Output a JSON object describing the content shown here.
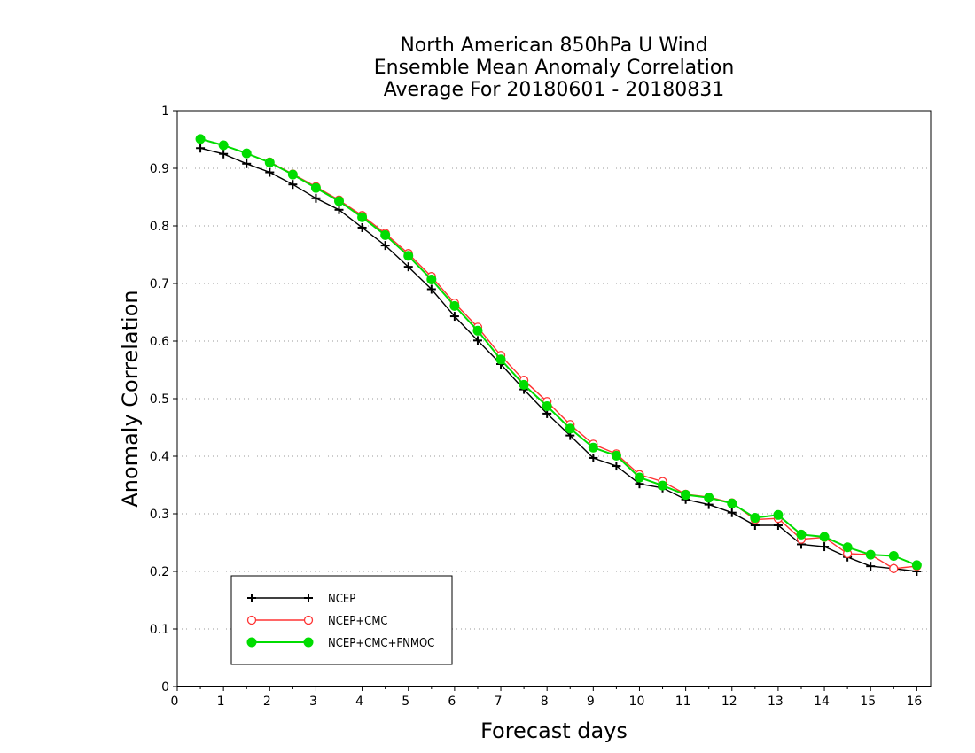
{
  "chart_data": {
    "type": "line",
    "title": [
      "North American 850hPa U Wind",
      "Ensemble Mean Anomaly Correlation",
      "Average For 20180601 - 20180831"
    ],
    "xlabel": "Forecast days",
    "ylabel": "Anomaly Correlation",
    "xlim": [
      0,
      16.3
    ],
    "ylim": [
      0,
      1
    ],
    "xticks": [
      "0",
      "1",
      "2",
      "3",
      "4",
      "5",
      "6",
      "7",
      "8",
      "9",
      "10",
      "11",
      "12",
      "13",
      "14",
      "15",
      "16"
    ],
    "yticks": [
      "0",
      "0.1",
      "0.2",
      "0.3",
      "0.4",
      "0.5",
      "0.6",
      "0.7",
      "0.8",
      "0.9",
      "1"
    ],
    "grid": "horizontal dotted",
    "legend_position": "bottom-left",
    "x": [
      0.5,
      1,
      1.5,
      2,
      2.5,
      3,
      3.5,
      4,
      4.5,
      5,
      5.5,
      6,
      6.5,
      7,
      7.5,
      8,
      8.5,
      9,
      9.5,
      10,
      10.5,
      11,
      11.5,
      12,
      12.5,
      13,
      13.5,
      14,
      14.5,
      15,
      15.5,
      16
    ],
    "series": [
      {
        "name": "NCEP",
        "color": "#000000",
        "marker": "plus",
        "values": [
          0.935,
          0.925,
          0.908,
          0.893,
          0.872,
          0.848,
          0.828,
          0.797,
          0.766,
          0.729,
          0.69,
          0.643,
          0.601,
          0.56,
          0.516,
          0.474,
          0.436,
          0.397,
          0.383,
          0.352,
          0.345,
          0.325,
          0.316,
          0.302,
          0.28,
          0.28,
          0.247,
          0.243,
          0.225,
          0.209,
          0.205,
          0.2
        ]
      },
      {
        "name": "NCEP+CMC",
        "color": "#ff3333",
        "marker": "open-circle",
        "values": [
          0.951,
          0.94,
          0.926,
          0.911,
          0.89,
          0.868,
          0.845,
          0.818,
          0.787,
          0.752,
          0.712,
          0.666,
          0.624,
          0.575,
          0.532,
          0.495,
          0.455,
          0.421,
          0.404,
          0.368,
          0.356,
          0.334,
          0.329,
          0.319,
          0.29,
          0.292,
          0.256,
          0.259,
          0.231,
          0.229,
          0.205,
          0.209
        ]
      },
      {
        "name": "NCEP+CMC+FNMOC",
        "color": "#00dd00",
        "marker": "filled-circle",
        "values": [
          0.951,
          0.94,
          0.926,
          0.91,
          0.889,
          0.866,
          0.843,
          0.815,
          0.784,
          0.748,
          0.707,
          0.661,
          0.618,
          0.568,
          0.524,
          0.487,
          0.448,
          0.415,
          0.401,
          0.363,
          0.349,
          0.333,
          0.328,
          0.318,
          0.293,
          0.298,
          0.264,
          0.26,
          0.242,
          0.229,
          0.227,
          0.211
        ]
      }
    ]
  }
}
